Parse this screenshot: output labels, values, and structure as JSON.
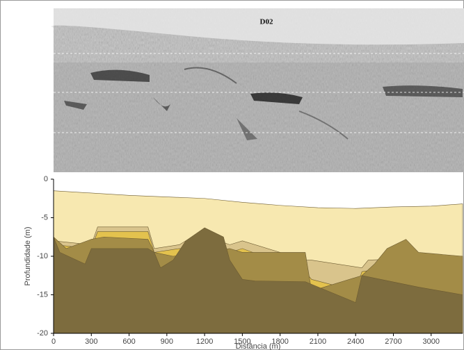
{
  "chart_data": {
    "type": "area",
    "image_label": "D02",
    "xlabel": "Distância (m)",
    "ylabel": "Profundidade (m)",
    "xlim": [
      0,
      3250
    ],
    "ylim": [
      -20,
      0
    ],
    "xticks": [
      0,
      300,
      600,
      900,
      1200,
      1500,
      1800,
      2100,
      2400,
      2700,
      3000
    ],
    "yticks": [
      0,
      -5,
      -10,
      -15,
      -20
    ],
    "series": [
      {
        "color": "#f7e8b0",
        "x": [
          0,
          300,
          600,
          900,
          1200,
          1500,
          1800,
          2100,
          2400,
          2700,
          3000,
          3250
        ],
        "values": [
          -1.5,
          -1.8,
          -2.1,
          -2.3,
          -2.5,
          -3,
          -3.4,
          -3.7,
          -3.8,
          -3.6,
          -3.5,
          -3.2
        ]
      },
      {
        "color": "#d9c48c",
        "x": [
          0,
          300,
          350,
          750,
          800,
          1000,
          1150,
          1400,
          1500,
          2000,
          2050,
          2450,
          2500,
          3250
        ],
        "values": [
          -8,
          -8.5,
          -6.2,
          -6.2,
          -9,
          -8.5,
          -7,
          -8.5,
          -8,
          -10.5,
          -10.5,
          -11.5,
          -10.5,
          -10
        ]
      },
      {
        "color": "#e3c24e",
        "x": [
          0,
          300,
          350,
          750,
          800,
          1000,
          1400,
          1500,
          2000,
          2050,
          2400,
          2450,
          3250
        ],
        "values": [
          -8.5,
          -9,
          -6.8,
          -6.8,
          -9.5,
          -9,
          -9.5,
          -9,
          -12,
          -13,
          -14.5,
          -12,
          -10
        ]
      },
      {
        "color": "#a38c47",
        "x": [
          0,
          100,
          300,
          400,
          750,
          800,
          950,
          1400,
          1500,
          2000,
          2050,
          2450,
          2550,
          2650,
          2800,
          2900,
          3250
        ],
        "values": [
          -7.5,
          -9,
          -7.8,
          -7.5,
          -7.8,
          -9.5,
          -10,
          -9,
          -9.5,
          -9.5,
          -14.5,
          -12.5,
          -11,
          -9,
          -7.8,
          -9.5,
          -10
        ]
      },
      {
        "color": "#7d6c3e",
        "x": [
          0,
          50,
          250,
          300,
          750,
          800,
          850,
          950,
          1050,
          1200,
          1350,
          1400,
          1500,
          1600,
          2000,
          2400,
          2450,
          2600,
          2900,
          3250
        ],
        "values": [
          -7.5,
          -9.5,
          -11,
          -9,
          -9,
          -9.5,
          -11.5,
          -10.5,
          -8,
          -6.3,
          -7.5,
          -10.5,
          -13,
          -13.2,
          -13.3,
          -16,
          -12.5,
          -13,
          -14,
          -15
        ]
      }
    ]
  }
}
